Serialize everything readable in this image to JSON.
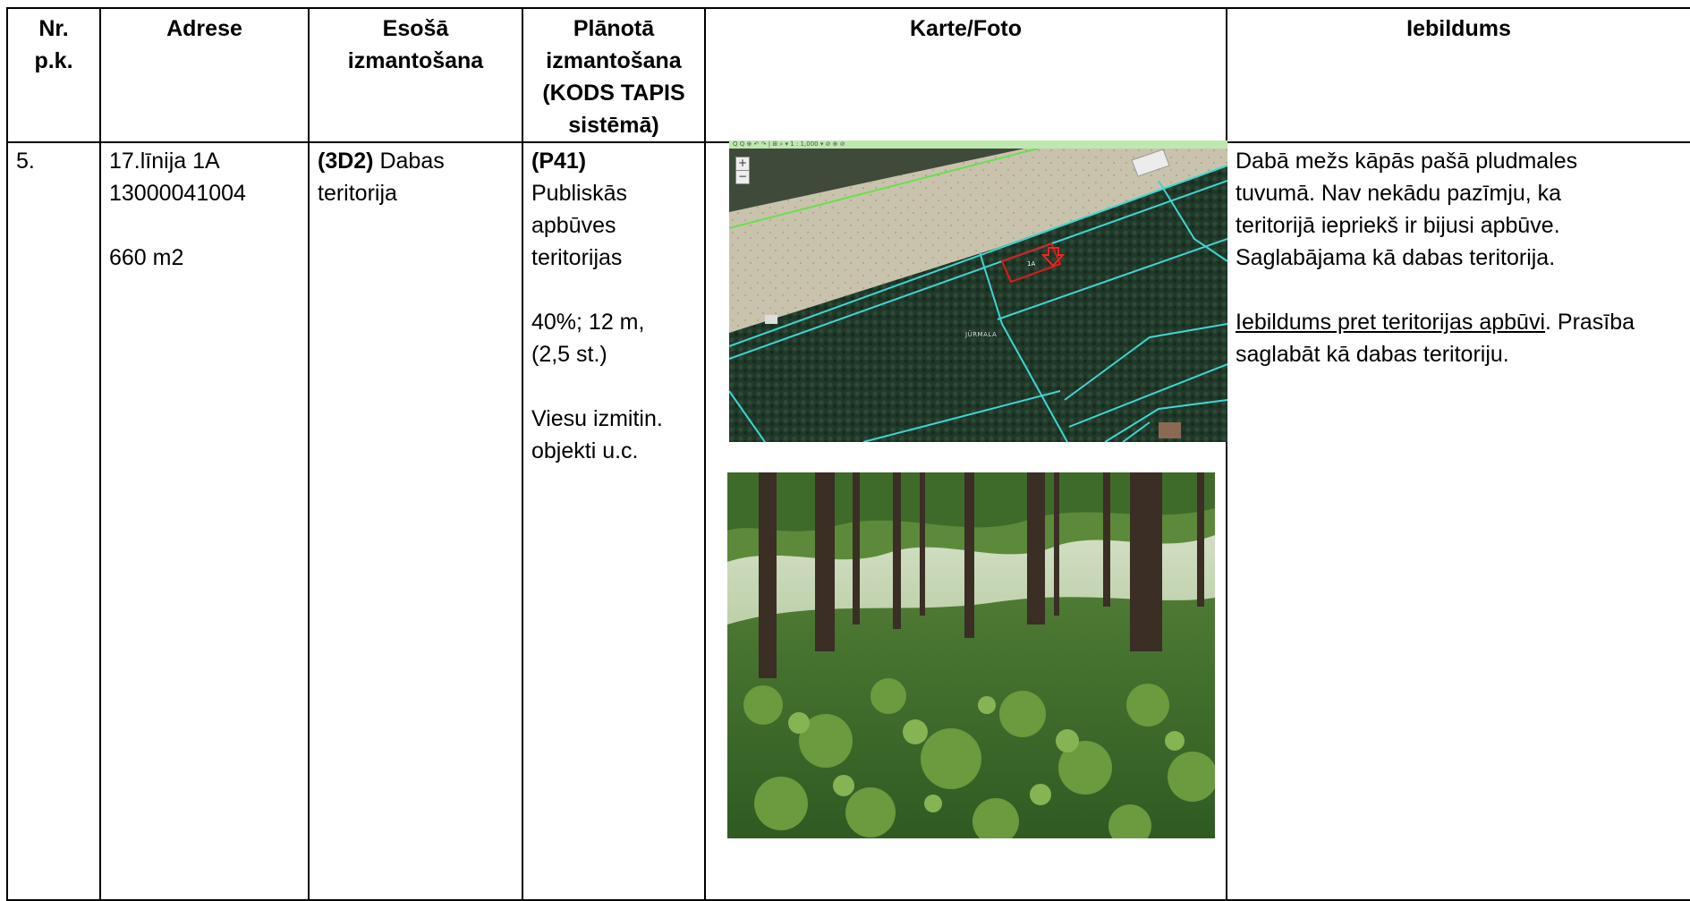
{
  "table": {
    "headers": {
      "nr": [
        "Nr.",
        "p.k."
      ],
      "adrese": "Adrese",
      "esosa": [
        "Esošā",
        "izmantošana"
      ],
      "planota": [
        "Plānotā",
        "izmantošana",
        "(KODS TAPIS",
        "sistēmā)"
      ],
      "karte": "Karte/Foto",
      "iebildums": "Iebildums"
    },
    "row": {
      "nr": "5.",
      "adrese": {
        "line1": "17.līnija 1A",
        "line2": "13000041004",
        "area": "660 m2"
      },
      "esosa": {
        "code": "(3D2)",
        "text_a": " Dabas",
        "text_b": "teritorija"
      },
      "planota": {
        "code": "(P41)",
        "lines": [
          "Publiskās",
          "apbūves",
          "teritorijas"
        ],
        "params": [
          "40%; 12 m,",
          "(2,5 st.)"
        ],
        "usage": [
          "Viesu izmitin.",
          "objekti u.c."
        ]
      },
      "iebildums": {
        "lines": [
          "Dabā mežs kāpās pašā pludmales",
          "tuvumā. Nav nekādu pazīmju, ka",
          "teritorijā iepriekš ir bijusi apbūve.",
          "Saglabājama kā dabas teritorija."
        ],
        "objection_underlined": "Iebildums pret teritorijas apbūvi",
        "objection_rest_a": ". Prasība",
        "objection_rest_b": "saglabāt kā dabas teritoriju."
      }
    }
  },
  "map": {
    "toolbar_text": "Q Q ⊕ ↶ ↷ | ⊞ ⌕ ▾    1 : 1,000 ▾ ⊘ ⊕ ⊘",
    "zoom_in": "+",
    "zoom_out": "−",
    "place_label": "JŪRMALA",
    "parcel_label": "1A"
  },
  "colors": {
    "border": "#000000",
    "cadastre_line": "#3fd6d0",
    "parcel_outline": "#e01a1a",
    "toolbar": "#bfe8b0"
  }
}
